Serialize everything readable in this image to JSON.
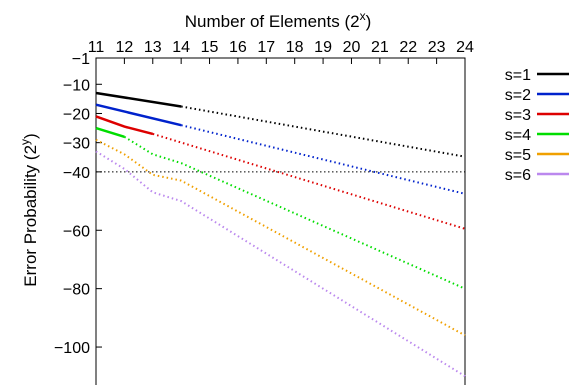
{
  "chart_data": {
    "type": "line",
    "title": "",
    "xlabel": "Number of Elements (2^x)",
    "xlabel_parts": {
      "text": "Number of Elements (2",
      "sup": "x",
      "close": ")"
    },
    "ylabel": "Error Probability (2^y)",
    "ylabel_parts": {
      "text": "Error Probability (2",
      "sup": "y",
      "close": ")"
    },
    "xlim": [
      11,
      24
    ],
    "ylim": [
      -113,
      -1
    ],
    "x_ticks": [
      11,
      12,
      13,
      14,
      15,
      16,
      17,
      18,
      19,
      20,
      21,
      22,
      23,
      24
    ],
    "x_tick_labels": [
      "11",
      "12",
      "13",
      "14",
      "15",
      "16",
      "17",
      "18",
      "19",
      "20",
      "21",
      "22",
      "23",
      "24"
    ],
    "y_ticks": [
      -1,
      -10,
      -20,
      -30,
      -40,
      -60,
      -80,
      -100
    ],
    "y_tick_labels": [
      "−1",
      "−10",
      "−20",
      "−30",
      "−40",
      "−60",
      "−80",
      "−100"
    ],
    "x_axis_position": "top",
    "grid": false,
    "legend_position": "right",
    "reference_line": {
      "y": -40,
      "style": "dotted",
      "color": "#000000"
    },
    "series": [
      {
        "name": "s=1",
        "color": "#000000",
        "solid": [
          [
            11,
            -13
          ],
          [
            14,
            -17.6
          ]
        ],
        "dotted": [
          [
            14,
            -17.6
          ],
          [
            24,
            -34.8
          ]
        ]
      },
      {
        "name": "s=2",
        "color": "#0022cc",
        "solid": [
          [
            11,
            -17
          ],
          [
            14,
            -24
          ]
        ],
        "dotted": [
          [
            14,
            -24
          ],
          [
            24,
            -47.5
          ]
        ]
      },
      {
        "name": "s=3",
        "color": "#dd0000",
        "solid": [
          [
            11,
            -21
          ],
          [
            12,
            -24.5
          ],
          [
            13,
            -27
          ]
        ],
        "dotted": [
          [
            13,
            -27
          ],
          [
            24,
            -59.5
          ]
        ]
      },
      {
        "name": "s=4",
        "color": "#00dd00",
        "solid": [
          [
            11,
            -25
          ],
          [
            12,
            -28
          ]
        ],
        "dotted": [
          [
            12,
            -28
          ],
          [
            13,
            -34
          ],
          [
            14,
            -37
          ],
          [
            24,
            -80
          ]
        ]
      },
      {
        "name": "s=5",
        "color": "#f0a000",
        "solid": [],
        "dotted": [
          [
            11,
            -29
          ],
          [
            12,
            -34
          ],
          [
            13,
            -41
          ],
          [
            14,
            -43
          ],
          [
            24,
            -96
          ]
        ]
      },
      {
        "name": "s=6",
        "color": "#bb88ee",
        "solid": [],
        "dotted": [
          [
            11,
            -33
          ],
          [
            12,
            -39
          ],
          [
            13,
            -47
          ],
          [
            14,
            -50
          ],
          [
            24,
            -110
          ]
        ]
      }
    ]
  }
}
